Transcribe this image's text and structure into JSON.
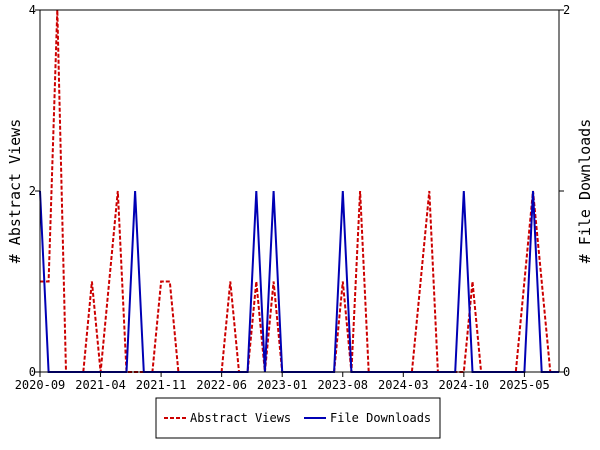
{
  "chart_data": {
    "type": "line",
    "ylabel_left": "# Abstract Views",
    "ylabel_right": "# File Downloads",
    "ylim_left": [
      0,
      4
    ],
    "ylim_right": [
      0,
      2
    ],
    "left_ticks": [
      "0",
      "2",
      "4"
    ],
    "right_ticks": [
      "0",
      "1",
      "2"
    ],
    "x_ticks": [
      "2020-09",
      "2021-04",
      "2021-11",
      "2022-06",
      "2023-01",
      "2023-08",
      "2024-03",
      "2024-10",
      "2025-05"
    ],
    "x_tick_months": [
      0,
      7,
      14,
      21,
      28,
      35,
      42,
      49,
      56
    ],
    "x_range_months": [
      0,
      60
    ],
    "legend_position": "bottom-center",
    "series": [
      {
        "name": "Abstract Views",
        "axis": "left",
        "color": "#cc0000",
        "style": "dashed",
        "x_months": [
          0,
          1,
          2,
          3,
          4,
          5,
          6,
          7,
          8,
          9,
          10,
          11,
          12,
          13,
          14,
          15,
          16,
          17,
          18,
          19,
          20,
          21,
          22,
          23,
          24,
          25,
          26,
          27,
          28,
          29,
          30,
          31,
          32,
          33,
          34,
          35,
          36,
          37,
          38,
          39,
          40,
          41,
          42,
          43,
          44,
          45,
          46,
          47,
          48,
          49,
          50,
          51,
          52,
          53,
          54,
          55,
          56,
          57,
          58,
          59,
          60
        ],
        "values": [
          1,
          1,
          4,
          0,
          0,
          0,
          1,
          0,
          1,
          2,
          0,
          0,
          0,
          0,
          1,
          1,
          0,
          0,
          0,
          0,
          0,
          0,
          1,
          0,
          0,
          1,
          0,
          1,
          0,
          0,
          0,
          0,
          0,
          0,
          0,
          1,
          0,
          2,
          0,
          0,
          0,
          0,
          0,
          0,
          1,
          2,
          0,
          0,
          0,
          0,
          1,
          0,
          0,
          0,
          0,
          0,
          1,
          2,
          1,
          0,
          0
        ]
      },
      {
        "name": "File Downloads",
        "axis": "right",
        "color": "#0000b4",
        "style": "solid",
        "x_months": [
          0,
          1,
          2,
          3,
          4,
          5,
          6,
          7,
          8,
          9,
          10,
          11,
          12,
          13,
          14,
          15,
          16,
          17,
          18,
          19,
          20,
          21,
          22,
          23,
          24,
          25,
          26,
          27,
          28,
          29,
          30,
          31,
          32,
          33,
          34,
          35,
          36,
          37,
          38,
          39,
          40,
          41,
          42,
          43,
          44,
          45,
          46,
          47,
          48,
          49,
          50,
          51,
          52,
          53,
          54,
          55,
          56,
          57,
          58,
          59,
          60
        ],
        "values": [
          1,
          0,
          0,
          0,
          0,
          0,
          0,
          0,
          0,
          0,
          0,
          1,
          0,
          0,
          0,
          0,
          0,
          0,
          0,
          0,
          0,
          0,
          0,
          0,
          0,
          1,
          0,
          1,
          0,
          0,
          0,
          0,
          0,
          0,
          0,
          1,
          0,
          0,
          0,
          0,
          0,
          0,
          0,
          0,
          0,
          0,
          0,
          0,
          0,
          1,
          0,
          0,
          0,
          0,
          0,
          0,
          0,
          1,
          0,
          0,
          0
        ]
      }
    ]
  }
}
